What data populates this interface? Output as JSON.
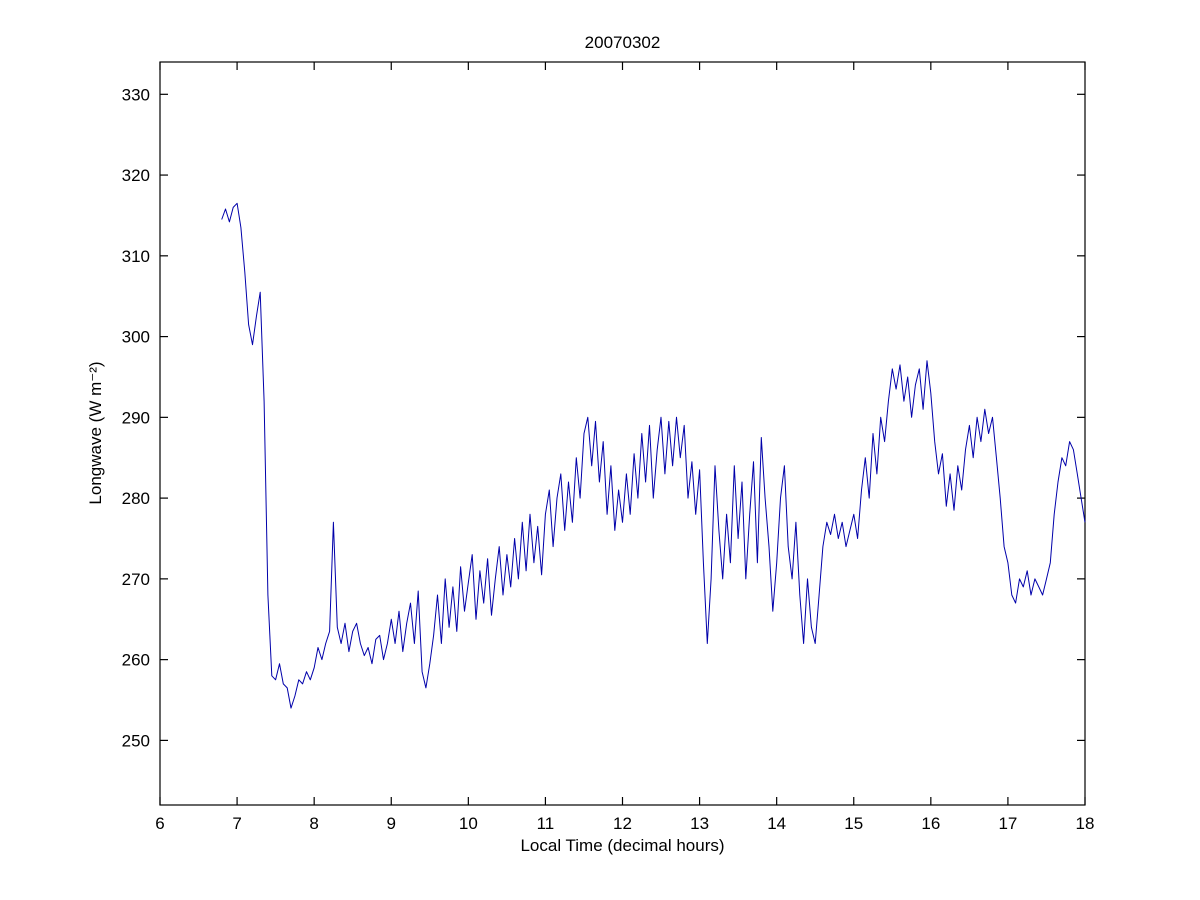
{
  "chart_data": {
    "type": "line",
    "title": "20070302",
    "xlabel": "Local Time (decimal hours)",
    "ylabel": "Longwave (W m⁻²)",
    "xlim": [
      6,
      18
    ],
    "ylim": [
      242,
      334
    ],
    "xticks": [
      6,
      7,
      8,
      9,
      10,
      11,
      12,
      13,
      14,
      15,
      16,
      17,
      18
    ],
    "yticks": [
      250,
      260,
      270,
      280,
      290,
      300,
      310,
      320,
      330
    ],
    "grid": false,
    "legend": "none",
    "line_color": "#0000AA",
    "frame_color": "#000000",
    "background_color": "#ffffff",
    "n_points": 225,
    "x_start": 6.8,
    "x_step": 0.05,
    "x_end": 18.0,
    "y": [
      314.5,
      315.8,
      314.2,
      316.0,
      316.5,
      313.5,
      308.0,
      301.5,
      299.0,
      302.5,
      305.5,
      292.0,
      268.0,
      258.0,
      257.5,
      259.5,
      257.0,
      256.5,
      254.0,
      255.5,
      257.5,
      257.0,
      258.5,
      257.5,
      259.0,
      261.5,
      260.0,
      262.0,
      263.5,
      277.0,
      264.0,
      262.0,
      264.5,
      261.0,
      263.5,
      264.5,
      262.0,
      260.5,
      261.5,
      259.5,
      262.5,
      263.0,
      260.0,
      262.0,
      265.0,
      262.0,
      266.0,
      261.0,
      264.5,
      267.0,
      262.0,
      268.5,
      258.5,
      256.5,
      259.5,
      263.0,
      268.0,
      262.0,
      270.0,
      264.0,
      269.0,
      263.5,
      271.5,
      266.0,
      269.5,
      273.0,
      265.0,
      271.0,
      267.0,
      272.5,
      265.5,
      270.0,
      274.0,
      268.0,
      273.0,
      269.0,
      275.0,
      270.0,
      277.0,
      271.0,
      278.0,
      272.0,
      276.5,
      270.5,
      278.0,
      281.0,
      274.0,
      280.0,
      283.0,
      276.0,
      282.0,
      277.0,
      285.0,
      280.0,
      288.0,
      290.0,
      284.0,
      289.5,
      282.0,
      287.0,
      278.0,
      284.0,
      276.0,
      281.0,
      277.0,
      283.0,
      278.0,
      285.5,
      280.0,
      288.0,
      282.0,
      289.0,
      280.0,
      286.0,
      290.0,
      283.0,
      289.5,
      284.0,
      290.0,
      285.0,
      289.0,
      280.0,
      284.5,
      278.0,
      283.5,
      272.0,
      262.0,
      270.0,
      284.0,
      276.0,
      270.0,
      278.0,
      272.0,
      284.0,
      275.0,
      282.0,
      270.0,
      278.0,
      284.5,
      272.0,
      287.5,
      280.0,
      274.0,
      266.0,
      272.0,
      280.0,
      284.0,
      274.0,
      270.0,
      277.0,
      268.0,
      262.0,
      270.0,
      264.0,
      262.0,
      268.0,
      274.0,
      277.0,
      275.5,
      278.0,
      275.0,
      277.0,
      274.0,
      276.0,
      278.0,
      275.0,
      281.0,
      285.0,
      280.0,
      288.0,
      283.0,
      290.0,
      287.0,
      292.0,
      296.0,
      293.5,
      296.5,
      292.0,
      295.0,
      290.0,
      294.0,
      296.0,
      291.0,
      297.0,
      293.0,
      287.0,
      283.0,
      285.5,
      279.0,
      283.0,
      278.5,
      284.0,
      281.0,
      286.0,
      289.0,
      285.0,
      290.0,
      287.0,
      291.0,
      288.0,
      290.0,
      285.0,
      280.0,
      274.0,
      272.0,
      268.0,
      267.0,
      270.0,
      269.0,
      271.0,
      268.0,
      270.0,
      269.0,
      268.0,
      270.0,
      272.0,
      278.0,
      282.0,
      285.0,
      284.0,
      287.0,
      286.0,
      283.0,
      280.0,
      277.0
    ]
  }
}
